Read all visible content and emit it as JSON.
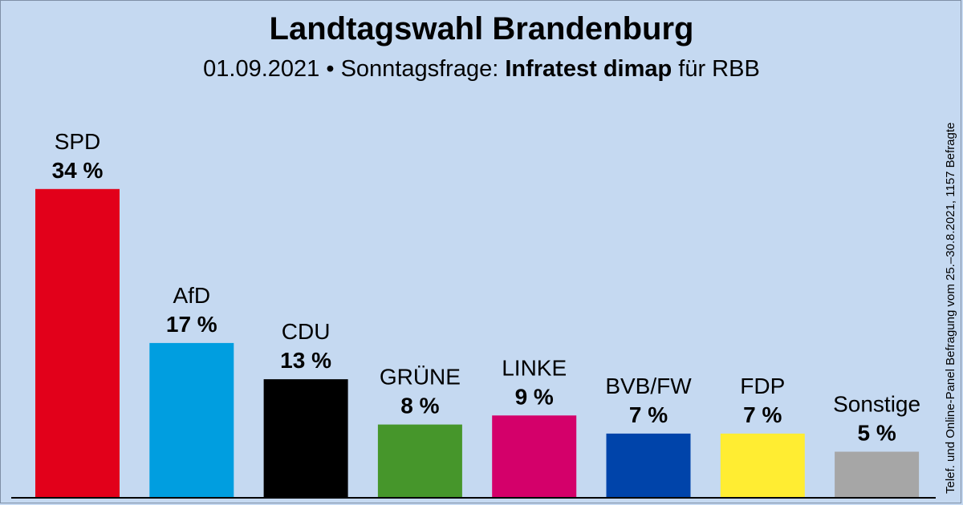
{
  "header": {
    "title": "Landtagswahl Brandenburg",
    "subtitle_prefix": "01.09.2021 • Sonntagsfrage: ",
    "subtitle_institute": "Infratest dimap",
    "subtitle_suffix": " für RBB"
  },
  "side_note": "Telef. und Online-Panel Befragung vom 25.–30.8.2021, 1157 Befragte",
  "chart_data": {
    "type": "bar",
    "title": "Landtagswahl Brandenburg",
    "categories": [
      "SPD",
      "AfD",
      "CDU",
      "GRÜNE",
      "LINKE",
      "BVB/FW",
      "FDP",
      "Sonstige"
    ],
    "values": [
      34,
      17,
      13,
      8,
      9,
      7,
      7,
      5
    ],
    "value_labels": [
      "34 %",
      "17 %",
      "13 %",
      "8 %",
      "9 %",
      "7 %",
      "7 %",
      "5 %"
    ],
    "colors": [
      "#e2001a",
      "#009ee0",
      "#000000",
      "#46962b",
      "#d4006a",
      "#0044aa",
      "#ffed32",
      "#a6a6a6"
    ],
    "unit": "%",
    "grid": false,
    "legend": "none"
  }
}
